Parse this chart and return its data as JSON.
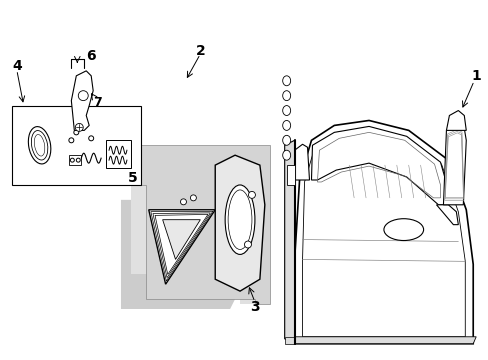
{
  "bg_color": "#ffffff",
  "lc": "#000000",
  "gray1": "#cccccc",
  "gray2": "#e0e0e0",
  "fig_width": 4.89,
  "fig_height": 3.6,
  "dpi": 100
}
